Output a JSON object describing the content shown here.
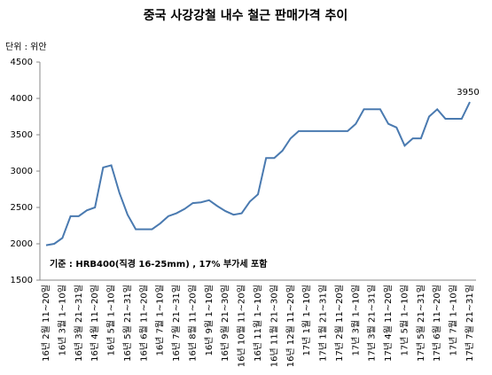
{
  "chart_data": {
    "type": "line",
    "title": "중국 사강강철 내수 철근 판매가격 추이",
    "unit_label": "단위 : 위안",
    "annotation": "기준 : HRB400(직경 16-25mm) , 17% 부가세 포함",
    "categories": [
      "16년 2월 11~20일",
      null,
      "16년 3월 1~10일",
      null,
      "16년 3월 21~31일",
      null,
      "16년 4월 11~20일",
      null,
      "16년 5월 1~10일",
      null,
      "16년 5월 21~31일",
      null,
      "16년 6월 11~20일",
      null,
      "16년 7월 1~10일",
      null,
      "16년 7월 21~31일",
      null,
      "16년 8월 11~20일",
      null,
      "16년 9월 1~10일",
      null,
      "16년 9월 21~30일",
      null,
      "16년 10월 11~20일",
      null,
      "16년 11월 1~10일",
      null,
      "16년 11월 21~30일",
      null,
      "16년 12월 11~20일",
      null,
      "17년 1월 1~10일",
      null,
      "17년 1월 21~31일",
      null,
      "17년 2월 11~20일",
      null,
      "17년 3월 1~10일",
      null,
      "17년 3월 21~31일",
      null,
      "17년 4월 11~20일",
      null,
      "17년 5월 1~10일",
      null,
      "17년 5월 21~31일",
      null,
      "17년 6월 11~20일",
      null,
      "17년 7월 1~10일",
      null,
      "17년 7월 21~31일"
    ],
    "values": [
      1980,
      2000,
      2080,
      2380,
      2380,
      2460,
      2500,
      3050,
      3080,
      2700,
      2400,
      2200,
      2200,
      2200,
      2280,
      2380,
      2420,
      2480,
      2560,
      2570,
      2600,
      2520,
      2450,
      2400,
      2420,
      2580,
      2680,
      3180,
      3180,
      3280,
      3450,
      3550,
      3550,
      3550,
      3550,
      3550,
      3550,
      3550,
      3650,
      3850,
      3850,
      3850,
      3650,
      3600,
      3350,
      3450,
      3450,
      3750,
      3850,
      3720,
      3720,
      3720,
      3950
    ],
    "color": "#4a7ab0",
    "ylim": [
      1500,
      4500
    ],
    "yticks": [
      1500,
      2000,
      2500,
      3000,
      3500,
      4000,
      4500
    ],
    "grid": false
  }
}
